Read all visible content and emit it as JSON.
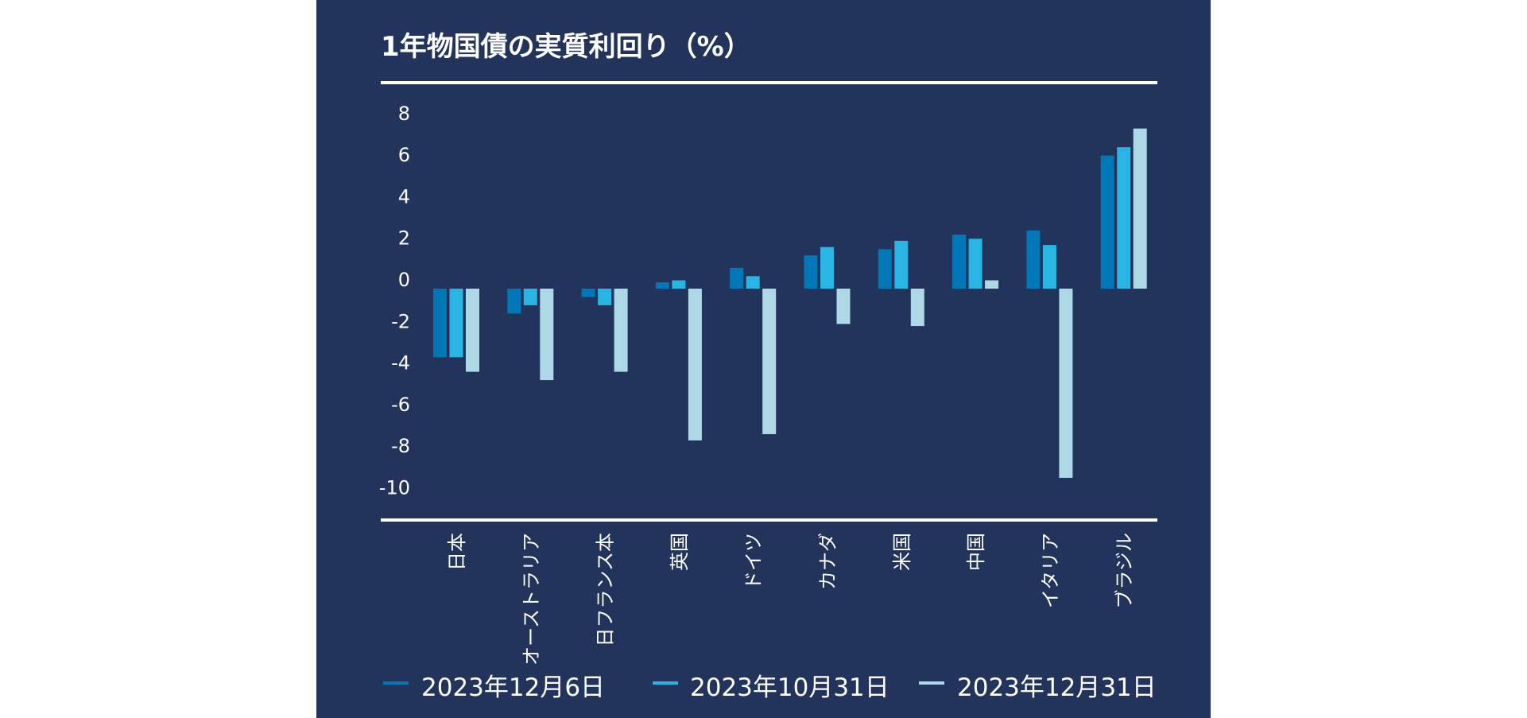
{
  "chart_data": {
    "type": "bar",
    "title": "1年物国債の実質利回り（%）",
    "xlabel": "",
    "ylabel": "",
    "ylim": [
      -10,
      8
    ],
    "yticks": [
      "8",
      "6",
      "4",
      "2",
      "0",
      "-2",
      "-4",
      "-6",
      "-8",
      "-10"
    ],
    "ytick_values": [
      8,
      6,
      4,
      2,
      0,
      -2,
      -4,
      -6,
      -8,
      -10
    ],
    "grid": false,
    "legend_position": "bottom",
    "categories": [
      "日本",
      "オーストラリア",
      "日フランス本",
      "英国",
      "ドイツ",
      "カナダ",
      "米国",
      "中国",
      "イタリア",
      "ブラジル"
    ],
    "series": [
      {
        "name": "2023年12月6日",
        "color": "#0077b6",
        "values": [
          -3.3,
          -1.2,
          -0.4,
          0.3,
          1.0,
          1.6,
          1.9,
          2.6,
          2.8,
          6.4
        ]
      },
      {
        "name": "2023年10月31日",
        "color": "#29b5e3",
        "values": [
          -3.3,
          -0.8,
          -0.8,
          0.4,
          0.6,
          2.0,
          2.3,
          2.4,
          2.1,
          6.8
        ]
      },
      {
        "name": "2023年12月31日",
        "color": "#add8e6",
        "values": [
          -4.0,
          -4.4,
          -4.0,
          -7.3,
          -7.0,
          -1.7,
          -1.8,
          0.4,
          -9.1,
          7.7
        ]
      }
    ]
  },
  "colors": {
    "background": "#22345b",
    "rule": "#ffffff"
  }
}
